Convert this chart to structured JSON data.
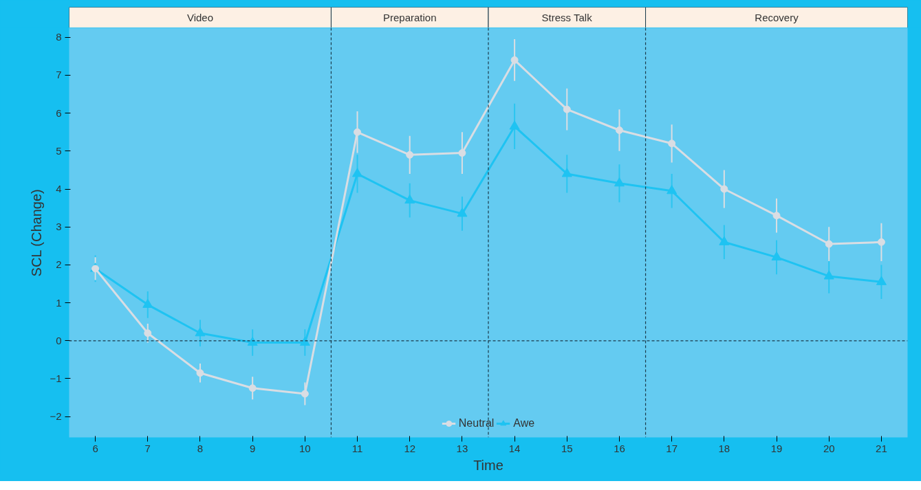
{
  "chart_data": {
    "type": "line",
    "xlabel": "Time",
    "ylabel": "SCL (Change)",
    "x": [
      6,
      7,
      8,
      9,
      10,
      11,
      12,
      13,
      14,
      15,
      16,
      17,
      18,
      19,
      20,
      21
    ],
    "xlim": [
      5.5,
      21.5
    ],
    "xticks": [
      6,
      7,
      8,
      9,
      10,
      11,
      12,
      13,
      14,
      15,
      16,
      17,
      18,
      19,
      20,
      21
    ],
    "ylim": [
      -2.55,
      8.25
    ],
    "yticks": [
      -2,
      -1,
      0,
      1,
      2,
      3,
      4,
      5,
      6,
      7,
      8
    ],
    "series": [
      {
        "name": "Neutral",
        "color": "#d9dde3",
        "marker": "circle",
        "values": [
          1.9,
          0.2,
          -0.85,
          -1.25,
          -1.4,
          5.5,
          4.9,
          4.95,
          7.4,
          6.1,
          5.55,
          5.2,
          4.0,
          3.3,
          2.55,
          2.6
        ],
        "errors": [
          0.3,
          0.25,
          0.25,
          0.3,
          0.3,
          0.55,
          0.5,
          0.55,
          0.55,
          0.55,
          0.55,
          0.5,
          0.5,
          0.45,
          0.45,
          0.5
        ]
      },
      {
        "name": "Awe",
        "color": "#1ec3f2",
        "marker": "triangle",
        "values": [
          1.9,
          0.95,
          0.2,
          -0.05,
          -0.05,
          4.4,
          3.7,
          3.35,
          5.65,
          4.4,
          4.15,
          3.95,
          2.6,
          2.2,
          1.7,
          1.55
        ],
        "errors": [
          0.35,
          0.35,
          0.35,
          0.35,
          0.35,
          0.5,
          0.45,
          0.45,
          0.6,
          0.5,
          0.5,
          0.45,
          0.45,
          0.45,
          0.45,
          0.45
        ]
      }
    ],
    "ref_lines": [
      {
        "axis": "y",
        "value": 0,
        "line_style": "dashed",
        "color": "#1a3a4a"
      },
      {
        "axis": "x",
        "value": 10.5,
        "line_style": "dashed",
        "color": "#1a3a4a"
      },
      {
        "axis": "x",
        "value": 13.5,
        "line_style": "dashed",
        "color": "#1a3a4a"
      },
      {
        "axis": "x",
        "value": 16.5,
        "line_style": "dashed",
        "color": "#1a3a4a"
      }
    ],
    "bands": [
      {
        "axis": "x",
        "from": 5.5,
        "to": 10.5,
        "label": "Video",
        "color": "#fdf0e4"
      },
      {
        "axis": "x",
        "from": 10.5,
        "to": 13.5,
        "label": "Preparation",
        "color": "#fdf0e4"
      },
      {
        "axis": "x",
        "from": 13.5,
        "to": 16.5,
        "label": "Stress Talk",
        "color": "#fdf0e4"
      },
      {
        "axis": "x",
        "from": 16.5,
        "to": 21.5,
        "label": "Recovery",
        "color": "#fdf0e4"
      }
    ],
    "grid": false,
    "legend": "bottom",
    "line_style": "solid"
  }
}
